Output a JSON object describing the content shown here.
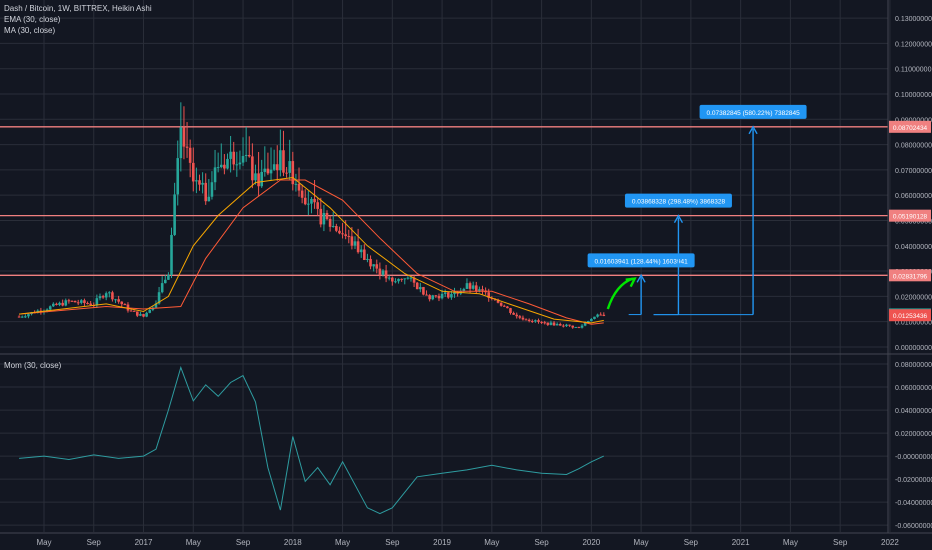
{
  "legend": {
    "main_title": "Dash / Bitcoin, 1W, BITTREX, Heikin Ashi",
    "ema_label": "EMA (30, close)",
    "ma_label": "MA (30, close)",
    "mom_label": "Mom (30, close)"
  },
  "colors": {
    "background": "#131722",
    "grid": "#2a2e39",
    "bull": "#26a69a",
    "bear": "#ef5350",
    "ema": "#f7a600",
    "ma": "#ff5a36",
    "horizontal_lines": "#f08080",
    "projection": "#2196f3",
    "arrow": "#00e600",
    "momentum": "#2e9ca0",
    "axis_text": "#b2b5be"
  },
  "chart_data": [
    {
      "type": "candlestick",
      "title": "Dash / Bitcoin, 1W, BITTREX, Heikin Ashi",
      "x_ticks": [
        "May",
        "Sep",
        "2017",
        "May",
        "Sep",
        "2018",
        "May",
        "Sep",
        "2019",
        "May",
        "Sep",
        "2020",
        "May",
        "Sep",
        "2021",
        "May",
        "Sep",
        "2022"
      ],
      "y_ticks": [
        "0.13000000",
        "0.12000000",
        "0.11000000",
        "0.10000000",
        "0.09000000",
        "0.08000000",
        "0.07000000",
        "0.06000000",
        "0.05000000",
        "0.04000000",
        "0.03000000",
        "0.02000000",
        "0.01000000",
        "0.00000000"
      ],
      "ylim": [
        -0.002,
        0.134
      ],
      "price_path": [
        [
          "2016-03",
          0.012
        ],
        [
          "2016-05",
          0.015
        ],
        [
          "2016-07",
          0.018
        ],
        [
          "2016-09",
          0.017
        ],
        [
          "2016-10",
          0.022
        ],
        [
          "2016-12",
          0.014
        ],
        [
          "2017-01",
          0.012
        ],
        [
          "2017-02",
          0.018
        ],
        [
          "2017-03",
          0.03
        ],
        [
          "2017-04",
          0.085
        ],
        [
          "2017-05",
          0.065
        ],
        [
          "2017-06",
          0.06
        ],
        [
          "2017-07",
          0.072
        ],
        [
          "2017-09",
          0.078
        ],
        [
          "2017-10",
          0.065
        ],
        [
          "2017-11",
          0.07
        ],
        [
          "2017-12",
          0.074
        ],
        [
          "2018-01",
          0.068
        ],
        [
          "2018-03",
          0.052
        ],
        [
          "2018-05",
          0.045
        ],
        [
          "2018-07",
          0.035
        ],
        [
          "2018-09",
          0.025
        ],
        [
          "2018-10",
          0.028
        ],
        [
          "2018-12",
          0.02
        ],
        [
          "2019-02",
          0.021
        ],
        [
          "2019-03",
          0.024
        ],
        [
          "2019-05",
          0.02
        ],
        [
          "2019-07",
          0.012
        ],
        [
          "2019-09",
          0.0095
        ],
        [
          "2019-11",
          0.0085
        ],
        [
          "2019-12",
          0.0075
        ],
        [
          "2020-01",
          0.0115
        ],
        [
          "2020-02",
          0.0128
        ]
      ],
      "ema_path": [
        [
          "2016-03",
          0.013
        ],
        [
          "2016-10",
          0.017
        ],
        [
          "2017-01",
          0.014
        ],
        [
          "2017-03",
          0.02
        ],
        [
          "2017-05",
          0.04
        ],
        [
          "2017-07",
          0.052
        ],
        [
          "2017-10",
          0.065
        ],
        [
          "2018-01",
          0.067
        ],
        [
          "2018-04",
          0.055
        ],
        [
          "2018-07",
          0.04
        ],
        [
          "2018-10",
          0.029
        ],
        [
          "2019-01",
          0.022
        ],
        [
          "2019-04",
          0.021
        ],
        [
          "2019-07",
          0.016
        ],
        [
          "2019-10",
          0.011
        ],
        [
          "2020-01",
          0.0095
        ],
        [
          "2020-02",
          0.0105
        ]
      ],
      "ma_path": [
        [
          "2016-03",
          0.013
        ],
        [
          "2016-10",
          0.016
        ],
        [
          "2017-01",
          0.015
        ],
        [
          "2017-04",
          0.016
        ],
        [
          "2017-06",
          0.035
        ],
        [
          "2017-09",
          0.055
        ],
        [
          "2017-12",
          0.066
        ],
        [
          "2018-02",
          0.066
        ],
        [
          "2018-05",
          0.058
        ],
        [
          "2018-08",
          0.043
        ],
        [
          "2018-11",
          0.029
        ],
        [
          "2019-02",
          0.022
        ],
        [
          "2019-05",
          0.022
        ],
        [
          "2019-08",
          0.017
        ],
        [
          "2019-11",
          0.0115
        ],
        [
          "2020-01",
          0.009
        ],
        [
          "2020-02",
          0.0095
        ]
      ],
      "horizontal_levels": [
        0.08702434,
        0.05190128,
        0.02831796
      ],
      "price_labels": [
        {
          "text": "0.08702434",
          "value": 0.08702434,
          "color": "#f08080"
        },
        {
          "text": "0.05190128",
          "value": 0.05190128,
          "color": "#f08080"
        },
        {
          "text": "0.02831796",
          "value": 0.02831796,
          "color": "#f08080"
        },
        {
          "text": "0.01285863",
          "value": 0.01285863,
          "color": "#26a69a"
        },
        {
          "text": "0.01253436",
          "value": 0.01253436,
          "color": "#ef5350"
        }
      ],
      "projections": [
        {
          "label": "0.01603941 (128.44%) 1603941",
          "start_date": "2020-04",
          "end_date": "2020-05",
          "from": 0.0128,
          "to": 0.02831796
        },
        {
          "label": "0.03868328 (298.48%) 3868328",
          "start_date": "2020-06",
          "end_date": "2020-08",
          "from": 0.0128,
          "to": 0.05190128
        },
        {
          "label": "0.07382845 (580.22%) 7382845",
          "start_date": "2020-06",
          "end_date": "2021-02",
          "from": 0.0128,
          "to": 0.08702434
        }
      ]
    },
    {
      "type": "line",
      "title": "Mom (30, close)",
      "y_ticks": [
        "0.08000000",
        "0.06000000",
        "0.04000000",
        "0.02000000",
        "-0.00000000",
        "-0.02000000",
        "-0.04000000",
        "-0.06000000"
      ],
      "ylim": [
        -0.066,
        0.087
      ],
      "values": [
        [
          "2016-03",
          -0.002
        ],
        [
          "2016-05",
          0.0
        ],
        [
          "2016-07",
          -0.003
        ],
        [
          "2016-09",
          0.001
        ],
        [
          "2016-11",
          -0.002
        ],
        [
          "2017-01",
          0.0
        ],
        [
          "2017-02",
          0.006
        ],
        [
          "2017-03",
          0.04
        ],
        [
          "2017-04",
          0.077
        ],
        [
          "2017-05",
          0.048
        ],
        [
          "2017-06",
          0.062
        ],
        [
          "2017-07",
          0.052
        ],
        [
          "2017-08",
          0.064
        ],
        [
          "2017-09",
          0.07
        ],
        [
          "2017-10",
          0.047
        ],
        [
          "2017-11",
          -0.01
        ],
        [
          "2017-12",
          -0.047
        ],
        [
          "2018-01",
          0.017
        ],
        [
          "2018-02",
          -0.022
        ],
        [
          "2018-03",
          -0.01
        ],
        [
          "2018-04",
          -0.025
        ],
        [
          "2018-05",
          -0.005
        ],
        [
          "2018-07",
          -0.045
        ],
        [
          "2018-08",
          -0.05
        ],
        [
          "2018-09",
          -0.045
        ],
        [
          "2018-11",
          -0.018
        ],
        [
          "2019-01",
          -0.015
        ],
        [
          "2019-03",
          -0.012
        ],
        [
          "2019-05",
          -0.008
        ],
        [
          "2019-07",
          -0.012
        ],
        [
          "2019-09",
          -0.015
        ],
        [
          "2019-11",
          -0.016
        ],
        [
          "2019-12",
          -0.011
        ],
        [
          "2020-01",
          -0.005
        ],
        [
          "2020-02",
          0.0
        ]
      ]
    }
  ]
}
